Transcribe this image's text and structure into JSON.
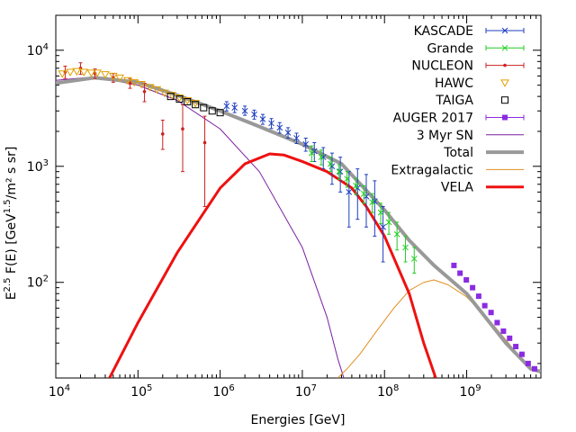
{
  "chart_data": {
    "type": "scatter",
    "title": "",
    "xlabel": "Energies [GeV]",
    "ylabel": "E^2.5 F(E) [GeV^1.5/m² s sr]",
    "xscale": "log",
    "yscale": "log",
    "xlim": [
      10000,
      8000000000
    ],
    "ylim": [
      15,
      20000
    ],
    "x_ticks": [
      {
        "base": "10",
        "exp": "4",
        "value": 10000
      },
      {
        "base": "10",
        "exp": "5",
        "value": 100000
      },
      {
        "base": "10",
        "exp": "6",
        "value": 1000000
      },
      {
        "base": "10",
        "exp": "7",
        "value": 10000000
      },
      {
        "base": "10",
        "exp": "8",
        "value": 100000000
      },
      {
        "base": "10",
        "exp": "9",
        "value": 1000000000
      }
    ],
    "y_ticks": [
      {
        "base": "10",
        "exp": "2",
        "value": 100
      },
      {
        "base": "10",
        "exp": "3",
        "value": 1000
      },
      {
        "base": "10",
        "exp": "4",
        "value": 10000
      }
    ],
    "legend_position": "top-right",
    "series": [
      {
        "name": "KASCADE",
        "kind": "errorbar",
        "color": "#1f3fbf",
        "marker": "x",
        "points": [
          [
            1200000.0,
            3300,
            3000,
            3600
          ],
          [
            1500000.0,
            3200,
            2900,
            3500
          ],
          [
            2000000.0,
            3000,
            2750,
            3300
          ],
          [
            2600000.0,
            2800,
            2550,
            3050
          ],
          [
            3300000.0,
            2550,
            2300,
            2800
          ],
          [
            4200000.0,
            2350,
            2120,
            2580
          ],
          [
            5300000.0,
            2150,
            1930,
            2380
          ],
          [
            6700000.0,
            1950,
            1750,
            2150
          ],
          [
            8500000.0,
            1750,
            1570,
            1930
          ],
          [
            11000000.0,
            1550,
            1350,
            1750
          ],
          [
            14000000.0,
            1350,
            1100,
            1600
          ],
          [
            18000000.0,
            1200,
            950,
            1450
          ],
          [
            23000000.0,
            1000,
            700,
            1300
          ],
          [
            29000000.0,
            900,
            600,
            1200
          ],
          [
            37000000.0,
            600,
            300,
            900
          ],
          [
            47000000.0,
            650,
            350,
            950
          ],
          [
            60000000.0,
            550,
            300,
            850
          ],
          [
            76000000.0,
            500,
            250,
            750
          ],
          [
            96000000.0,
            300,
            150,
            450
          ]
        ]
      },
      {
        "name": "Grande",
        "kind": "errorbar",
        "color": "#22cc22",
        "marker": "x",
        "points": [
          [
            13000000.0,
            1300,
            1100,
            1500
          ],
          [
            17000000.0,
            1200,
            1030,
            1380
          ],
          [
            22000000.0,
            1050,
            900,
            1200
          ],
          [
            28000000.0,
            900,
            770,
            1030
          ],
          [
            35000000.0,
            780,
            660,
            900
          ],
          [
            45000000.0,
            680,
            570,
            790
          ],
          [
            56000000.0,
            580,
            480,
            680
          ],
          [
            71000000.0,
            490,
            400,
            580
          ],
          [
            90000000.0,
            400,
            320,
            480
          ],
          [
            113000000.0,
            330,
            260,
            400
          ],
          [
            142000000.0,
            260,
            190,
            330
          ],
          [
            180000000.0,
            200,
            150,
            250
          ],
          [
            230000000.0,
            160,
            120,
            200
          ]
        ]
      },
      {
        "name": "NUCLEON",
        "kind": "errorbar",
        "color": "#cc2222",
        "marker": "dot",
        "points": [
          [
            13000.0,
            6500,
            5700,
            7300
          ],
          [
            20000.0,
            7000,
            6200,
            7800
          ],
          [
            30000.0,
            6300,
            5700,
            6900
          ],
          [
            50000.0,
            5800,
            5300,
            6300
          ],
          [
            80000.0,
            5200,
            4700,
            5700
          ],
          [
            120000.0,
            4400,
            3600,
            5200
          ],
          [
            200000.0,
            1900,
            1400,
            2500
          ],
          [
            350000.0,
            2100,
            900,
            3400
          ],
          [
            650000.0,
            1600,
            450,
            2700
          ]
        ]
      },
      {
        "name": "HAWC",
        "kind": "marker",
        "color": "#e0a000",
        "marker": "triangle-down",
        "points": [
          [
            12000.0,
            6300
          ],
          [
            15000.0,
            6500
          ],
          [
            18000.0,
            6600
          ],
          [
            22000.0,
            6500
          ],
          [
            27000.0,
            6400
          ],
          [
            32000.0,
            6400
          ],
          [
            40000.0,
            6200
          ],
          [
            50000.0,
            6000
          ],
          [
            60000.0,
            5800
          ],
          [
            75000.0,
            5500
          ],
          [
            90000.0,
            5300
          ],
          [
            110000.0,
            5100
          ],
          [
            140000.0,
            4800
          ],
          [
            170000.0,
            4600
          ],
          [
            210000.0,
            4300
          ],
          [
            260000.0,
            4100
          ],
          [
            320000.0,
            3900
          ],
          [
            400000.0,
            3700
          ],
          [
            500000.0,
            3500
          ]
        ]
      },
      {
        "name": "TAIGA",
        "kind": "marker",
        "color": "#000000",
        "marker": "square-open",
        "points": [
          [
            250000.0,
            4000
          ],
          [
            320000.0,
            3800
          ],
          [
            400000.0,
            3600
          ],
          [
            500000.0,
            3400
          ],
          [
            630000.0,
            3200
          ],
          [
            800000.0,
            3000
          ],
          [
            1000000.0,
            2900
          ]
        ]
      },
      {
        "name": "AUGER 2017",
        "kind": "marker",
        "color": "#8a2be2",
        "marker": "square",
        "points": [
          [
            700000000.0,
            140
          ],
          [
            830000000.0,
            120
          ],
          [
            990000000.0,
            105
          ],
          [
            1180000000.0,
            90
          ],
          [
            1400000000.0,
            76
          ],
          [
            1660000000.0,
            63
          ],
          [
            1980000000.0,
            55
          ],
          [
            2350000000.0,
            45
          ],
          [
            2800000000.0,
            38
          ],
          [
            3330000000.0,
            33
          ],
          [
            3960000000.0,
            28
          ],
          [
            4700000000.0,
            24
          ],
          [
            5600000000.0,
            20
          ],
          [
            6700000000.0,
            18
          ]
        ]
      },
      {
        "name": "3 Myr SN",
        "kind": "line",
        "color": "#7b1fa2",
        "width": 1,
        "points": [
          [
            10000.0,
            5500
          ],
          [
            30000.0,
            5900
          ],
          [
            100000.0,
            5000
          ],
          [
            300000.0,
            3700
          ],
          [
            1000000.0,
            2100
          ],
          [
            3000000.0,
            900
          ],
          [
            10000000.0,
            200
          ],
          [
            20000000.0,
            50
          ],
          [
            27000000.0,
            22
          ],
          [
            32000000.0,
            15
          ]
        ]
      },
      {
        "name": "Total",
        "kind": "line",
        "color": "#999999",
        "width": 4,
        "points": [
          [
            10000.0,
            5200
          ],
          [
            30000.0,
            5800
          ],
          [
            100000.0,
            5300
          ],
          [
            300000.0,
            4100
          ],
          [
            1000000.0,
            3000
          ],
          [
            3000000.0,
            2200
          ],
          [
            10000000.0,
            1550
          ],
          [
            30000000.0,
            1050
          ],
          [
            100000000.0,
            420
          ],
          [
            200000000.0,
            230
          ],
          [
            400000000.0,
            140
          ],
          [
            1000000000.0,
            80
          ],
          [
            3000000000.0,
            30
          ],
          [
            6000000000.0,
            18
          ],
          [
            8000000000.0,
            17
          ]
        ]
      },
      {
        "name": "Extragalactic",
        "kind": "line",
        "color": "#e09020",
        "width": 1,
        "points": [
          [
            27000000.0,
            15
          ],
          [
            35000000.0,
            18
          ],
          [
            50000000.0,
            24
          ],
          [
            80000000.0,
            38
          ],
          [
            130000000.0,
            60
          ],
          [
            200000000.0,
            85
          ],
          [
            300000000.0,
            100
          ],
          [
            400000000.0,
            105
          ],
          [
            600000000.0,
            95
          ],
          [
            1000000000.0,
            75
          ],
          [
            2000000000.0,
            45
          ],
          [
            4000000000.0,
            25
          ],
          [
            6000000000.0,
            18
          ],
          [
            8000000000.0,
            17
          ]
        ]
      },
      {
        "name": "VELA",
        "kind": "line",
        "color": "#ee1111",
        "width": 3,
        "points": [
          [
            45000.0,
            15
          ],
          [
            100000.0,
            45
          ],
          [
            300000.0,
            180
          ],
          [
            1000000.0,
            650
          ],
          [
            2000000.0,
            1050
          ],
          [
            4000000.0,
            1280
          ],
          [
            6000000.0,
            1250
          ],
          [
            10000000.0,
            1100
          ],
          [
            20000000.0,
            900
          ],
          [
            40000000.0,
            650
          ],
          [
            60000000.0,
            450
          ],
          [
            100000000.0,
            250
          ],
          [
            200000000.0,
            80
          ],
          [
            300000000.0,
            30
          ],
          [
            420000000.0,
            15
          ]
        ]
      }
    ]
  }
}
